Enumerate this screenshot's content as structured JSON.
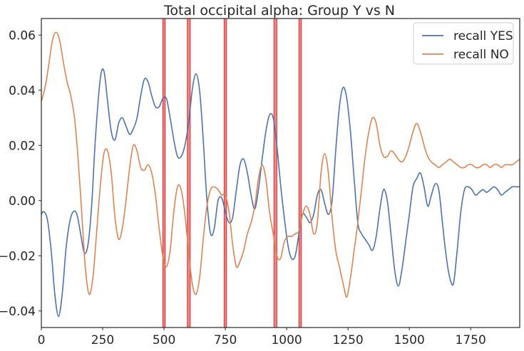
{
  "chart_data": {
    "type": "line",
    "title": "Total occipital alpha: Group Y vs N",
    "xlabel": "",
    "ylabel": "",
    "xlim": [
      0,
      1950
    ],
    "ylim": [
      -0.046,
      0.066
    ],
    "x_ticks": [
      0,
      250,
      500,
      750,
      1000,
      1250,
      1500,
      1750
    ],
    "x_tick_labels": [
      "0",
      "250",
      "500",
      "750",
      "1000",
      "1250",
      "1500",
      "1750"
    ],
    "y_ticks": [
      -0.04,
      -0.02,
      0.0,
      0.02,
      0.04,
      0.06
    ],
    "y_tick_labels": [
      "−0.04",
      "−0.02",
      "0.00",
      "0.02",
      "0.04",
      "0.06"
    ],
    "grid": false,
    "legend_position": "top-right",
    "highlight_regions": [
      [
        495,
        505
      ],
      [
        595,
        607
      ],
      [
        745,
        755
      ],
      [
        948,
        960
      ],
      [
        1050,
        1060
      ]
    ],
    "highlight_color": "#f07070",
    "series": [
      {
        "name": "recall YES",
        "color": "#4c72b0",
        "points": [
          [
            0,
            -0.005
          ],
          [
            10,
            -0.004
          ],
          [
            25,
            -0.007
          ],
          [
            40,
            -0.018
          ],
          [
            55,
            -0.034
          ],
          [
            70,
            -0.042
          ],
          [
            85,
            -0.034
          ],
          [
            100,
            -0.018
          ],
          [
            115,
            -0.008
          ],
          [
            130,
            -0.004
          ],
          [
            145,
            -0.005
          ],
          [
            160,
            -0.012
          ],
          [
            175,
            -0.019
          ],
          [
            190,
            -0.016
          ],
          [
            205,
            -0.002
          ],
          [
            220,
            0.022
          ],
          [
            240,
            0.044
          ],
          [
            255,
            0.047
          ],
          [
            270,
            0.036
          ],
          [
            285,
            0.025
          ],
          [
            300,
            0.022
          ],
          [
            315,
            0.028
          ],
          [
            330,
            0.03
          ],
          [
            345,
            0.027
          ],
          [
            360,
            0.024
          ],
          [
            375,
            0.026
          ],
          [
            390,
            0.03
          ],
          [
            405,
            0.038
          ],
          [
            420,
            0.044
          ],
          [
            435,
            0.043
          ],
          [
            450,
            0.038
          ],
          [
            465,
            0.034
          ],
          [
            480,
            0.034
          ],
          [
            495,
            0.037
          ],
          [
            510,
            0.037
          ],
          [
            525,
            0.03
          ],
          [
            540,
            0.022
          ],
          [
            555,
            0.016
          ],
          [
            570,
            0.016
          ],
          [
            585,
            0.02
          ],
          [
            600,
            0.028
          ],
          [
            615,
            0.04
          ],
          [
            630,
            0.046
          ],
          [
            645,
            0.04
          ],
          [
            660,
            0.022
          ],
          [
            675,
            0.0
          ],
          [
            690,
            -0.012
          ],
          [
            705,
            -0.01
          ],
          [
            720,
            0.0
          ],
          [
            735,
            0.001
          ],
          [
            750,
            -0.004
          ],
          [
            765,
            -0.008
          ],
          [
            780,
            -0.006
          ],
          [
            795,
            0.004
          ],
          [
            810,
            0.013
          ],
          [
            825,
            0.015
          ],
          [
            840,
            0.01
          ],
          [
            855,
            0.002
          ],
          [
            870,
            -0.003
          ],
          [
            885,
            0.004
          ],
          [
            900,
            0.015
          ],
          [
            915,
            0.025
          ],
          [
            930,
            0.031
          ],
          [
            945,
            0.03
          ],
          [
            960,
            0.02
          ],
          [
            975,
            0.006
          ],
          [
            990,
            -0.006
          ],
          [
            1005,
            -0.016
          ],
          [
            1020,
            -0.021
          ],
          [
            1035,
            -0.02
          ],
          [
            1050,
            -0.012
          ],
          [
            1065,
            -0.005
          ],
          [
            1080,
            -0.006
          ],
          [
            1095,
            -0.008
          ],
          [
            1110,
            -0.005
          ],
          [
            1125,
            0.002
          ],
          [
            1140,
            0.004
          ],
          [
            1155,
            -0.001
          ],
          [
            1170,
            -0.005
          ],
          [
            1185,
            0.0
          ],
          [
            1200,
            0.018
          ],
          [
            1215,
            0.034
          ],
          [
            1230,
            0.041
          ],
          [
            1245,
            0.037
          ],
          [
            1260,
            0.025
          ],
          [
            1275,
            0.008
          ],
          [
            1290,
            -0.008
          ],
          [
            1305,
            -0.012
          ],
          [
            1320,
            -0.014
          ],
          [
            1335,
            -0.016
          ],
          [
            1350,
            -0.018
          ],
          [
            1365,
            -0.013
          ],
          [
            1380,
            -0.003
          ],
          [
            1395,
            0.004
          ],
          [
            1410,
            0.0
          ],
          [
            1425,
            -0.012
          ],
          [
            1440,
            -0.025
          ],
          [
            1455,
            -0.031
          ],
          [
            1470,
            -0.025
          ],
          [
            1485,
            -0.015
          ],
          [
            1500,
            -0.005
          ],
          [
            1515,
            0.005
          ],
          [
            1530,
            0.008
          ],
          [
            1545,
            0.01
          ],
          [
            1560,
            0.005
          ],
          [
            1575,
            -0.002
          ],
          [
            1590,
            0.002
          ],
          [
            1605,
            0.006
          ],
          [
            1620,
            0.004
          ],
          [
            1635,
            -0.008
          ],
          [
            1650,
            -0.02
          ],
          [
            1665,
            -0.028
          ],
          [
            1680,
            -0.03
          ],
          [
            1695,
            -0.018
          ],
          [
            1710,
            -0.004
          ],
          [
            1725,
            0.004
          ],
          [
            1740,
            0.005
          ],
          [
            1755,
            0.004
          ],
          [
            1770,
            0.002
          ],
          [
            1785,
            0.003
          ],
          [
            1800,
            0.004
          ],
          [
            1815,
            0.003
          ],
          [
            1830,
            0.004
          ],
          [
            1845,
            0.005
          ],
          [
            1860,
            0.004
          ],
          [
            1875,
            0.002
          ],
          [
            1890,
            0.003
          ],
          [
            1905,
            0.004
          ],
          [
            1920,
            0.005
          ],
          [
            1935,
            0.005
          ],
          [
            1950,
            0.005
          ]
        ]
      },
      {
        "name": "recall NO",
        "color": "#dd8452",
        "points": [
          [
            0,
            0.036
          ],
          [
            15,
            0.041
          ],
          [
            30,
            0.049
          ],
          [
            45,
            0.058
          ],
          [
            60,
            0.061
          ],
          [
            75,
            0.058
          ],
          [
            90,
            0.05
          ],
          [
            105,
            0.043
          ],
          [
            120,
            0.038
          ],
          [
            135,
            0.03
          ],
          [
            150,
            0.015
          ],
          [
            165,
            -0.005
          ],
          [
            180,
            -0.025
          ],
          [
            195,
            -0.034
          ],
          [
            210,
            -0.028
          ],
          [
            225,
            -0.012
          ],
          [
            240,
            0.005
          ],
          [
            255,
            0.017
          ],
          [
            270,
            0.018
          ],
          [
            285,
            0.01
          ],
          [
            300,
            -0.006
          ],
          [
            315,
            -0.014
          ],
          [
            330,
            -0.01
          ],
          [
            345,
            0.0
          ],
          [
            360,
            0.012
          ],
          [
            375,
            0.02
          ],
          [
            390,
            0.018
          ],
          [
            405,
            0.012
          ],
          [
            420,
            0.011
          ],
          [
            435,
            0.013
          ],
          [
            450,
            0.01
          ],
          [
            465,
            0.002
          ],
          [
            480,
            -0.01
          ],
          [
            495,
            -0.02
          ],
          [
            510,
            -0.024
          ],
          [
            525,
            -0.018
          ],
          [
            540,
            -0.004
          ],
          [
            555,
            0.005
          ],
          [
            570,
            0.004
          ],
          [
            585,
            -0.005
          ],
          [
            600,
            -0.018
          ],
          [
            615,
            -0.03
          ],
          [
            630,
            -0.034
          ],
          [
            645,
            -0.028
          ],
          [
            660,
            -0.014
          ],
          [
            675,
            -0.002
          ],
          [
            690,
            0.004
          ],
          [
            705,
            0.005
          ],
          [
            720,
            0.004
          ],
          [
            735,
            0.002
          ],
          [
            750,
            0.002
          ],
          [
            765,
            -0.004
          ],
          [
            780,
            -0.016
          ],
          [
            795,
            -0.024
          ],
          [
            810,
            -0.022
          ],
          [
            825,
            -0.018
          ],
          [
            840,
            -0.012
          ],
          [
            855,
            -0.008
          ],
          [
            870,
            -0.002
          ],
          [
            885,
            0.008
          ],
          [
            900,
            0.013
          ],
          [
            915,
            0.008
          ],
          [
            930,
            -0.004
          ],
          [
            945,
            -0.012
          ],
          [
            960,
            -0.02
          ],
          [
            975,
            -0.021
          ],
          [
            990,
            -0.015
          ],
          [
            1005,
            -0.013
          ],
          [
            1020,
            -0.013
          ],
          [
            1035,
            -0.012
          ],
          [
            1050,
            -0.011
          ],
          [
            1065,
            -0.005
          ],
          [
            1080,
            -0.002
          ],
          [
            1095,
            -0.005
          ],
          [
            1110,
            -0.012
          ],
          [
            1125,
            -0.008
          ],
          [
            1140,
            0.01
          ],
          [
            1155,
            0.017
          ],
          [
            1170,
            0.01
          ],
          [
            1185,
            -0.006
          ],
          [
            1200,
            -0.018
          ],
          [
            1215,
            -0.024
          ],
          [
            1230,
            -0.03
          ],
          [
            1245,
            -0.035
          ],
          [
            1260,
            -0.028
          ],
          [
            1275,
            -0.018
          ],
          [
            1290,
            -0.008
          ],
          [
            1305,
            0.004
          ],
          [
            1320,
            0.016
          ],
          [
            1335,
            0.025
          ],
          [
            1350,
            0.03
          ],
          [
            1365,
            0.028
          ],
          [
            1380,
            0.02
          ],
          [
            1395,
            0.016
          ],
          [
            1410,
            0.016
          ],
          [
            1425,
            0.018
          ],
          [
            1440,
            0.017
          ],
          [
            1455,
            0.015
          ],
          [
            1470,
            0.014
          ],
          [
            1485,
            0.016
          ],
          [
            1500,
            0.02
          ],
          [
            1515,
            0.025
          ],
          [
            1530,
            0.028
          ],
          [
            1545,
            0.025
          ],
          [
            1560,
            0.02
          ],
          [
            1575,
            0.016
          ],
          [
            1590,
            0.014
          ],
          [
            1605,
            0.013
          ],
          [
            1620,
            0.012
          ],
          [
            1635,
            0.013
          ],
          [
            1650,
            0.014
          ],
          [
            1665,
            0.015
          ],
          [
            1680,
            0.014
          ],
          [
            1695,
            0.013
          ],
          [
            1710,
            0.012
          ],
          [
            1725,
            0.012
          ],
          [
            1740,
            0.013
          ],
          [
            1755,
            0.013
          ],
          [
            1770,
            0.012
          ],
          [
            1785,
            0.012
          ],
          [
            1800,
            0.013
          ],
          [
            1815,
            0.013
          ],
          [
            1830,
            0.012
          ],
          [
            1845,
            0.013
          ],
          [
            1860,
            0.013
          ],
          [
            1875,
            0.012
          ],
          [
            1890,
            0.013
          ],
          [
            1905,
            0.013
          ],
          [
            1920,
            0.013
          ],
          [
            1935,
            0.014
          ],
          [
            1950,
            0.015
          ]
        ]
      }
    ]
  }
}
